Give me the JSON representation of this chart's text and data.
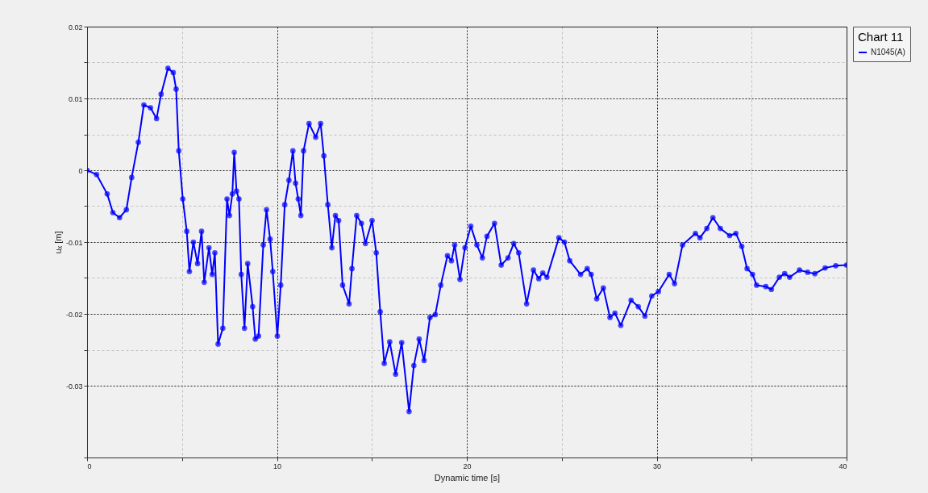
{
  "chart_data": {
    "type": "line",
    "xlabel": "Dynamic time [s]",
    "ylabel": "uₓ [m]",
    "legend_title": "Chart 11",
    "x": [
      0,
      0.5,
      1.06,
      1.36,
      1.71,
      2.07,
      2.35,
      2.7,
      2.99,
      3.34,
      3.66,
      3.9,
      4.26,
      4.54,
      4.69,
      4.83,
      5.04,
      5.25,
      5.39,
      5.6,
      5.82,
      6.03,
      6.17,
      6.42,
      6.59,
      6.73,
      6.9,
      7.15,
      7.37,
      7.5,
      7.65,
      7.75,
      7.87,
      8.0,
      8.12,
      8.29,
      8.46,
      8.72,
      8.86,
      9.03,
      9.28,
      9.45,
      9.64,
      9.78,
      10.02,
      10.2,
      10.41,
      10.63,
      10.84,
      10.98,
      11.12,
      11.26,
      11.4,
      11.69,
      12.04,
      12.3,
      12.47,
      12.68,
      12.89,
      13.08,
      13.25,
      13.46,
      13.8,
      13.95,
      14.2,
      14.45,
      14.66,
      15.01,
      15.23,
      15.44,
      15.65,
      15.94,
      16.25,
      16.57,
      16.96,
      17.21,
      17.49,
      17.75,
      18.06,
      18.34,
      18.63,
      18.98,
      19.19,
      19.36,
      19.64,
      19.9,
      20.21,
      20.53,
      20.82,
      21.06,
      21.46,
      21.81,
      22.17,
      22.47,
      22.73,
      23.15,
      23.51,
      23.79,
      24.0,
      24.22,
      24.85,
      25.14,
      25.42,
      25.99,
      26.34,
      26.55,
      26.84,
      27.19,
      27.54,
      27.8,
      28.11,
      28.65,
      29.03,
      29.38,
      29.74,
      30.09,
      30.66,
      30.94,
      31.36,
      32.04,
      32.28,
      32.64,
      32.96,
      33.35,
      33.84,
      34.17,
      34.48,
      34.76,
      35.05,
      35.26,
      35.75,
      36.04,
      36.46,
      36.74,
      37.0,
      37.52,
      37.95,
      38.33,
      38.87,
      39.43,
      40
    ],
    "series": [
      {
        "name": "N1045(A)",
        "color": "#0000ff",
        "values": [
          0,
          -0.0006,
          -0.0033,
          -0.0059,
          -0.0066,
          -0.0055,
          -0.001,
          0.0039,
          0.0091,
          0.0087,
          0.0072,
          0.0106,
          0.0142,
          0.0136,
          0.0113,
          0.0027,
          -0.004,
          -0.0085,
          -0.0141,
          -0.01,
          -0.013,
          -0.0085,
          -0.0156,
          -0.0108,
          -0.0145,
          -0.0115,
          -0.0242,
          -0.022,
          -0.004,
          -0.0063,
          -0.0033,
          0.0025,
          -0.0029,
          -0.004,
          -0.0145,
          -0.022,
          -0.013,
          -0.019,
          -0.0235,
          -0.0231,
          -0.0104,
          -0.0055,
          -0.0096,
          -0.0141,
          -0.0231,
          -0.016,
          -0.0048,
          -0.0014,
          0.0027,
          -0.0018,
          -0.004,
          -0.0063,
          0.0027,
          0.0065,
          0.0046,
          0.0065,
          0.002,
          -0.0048,
          -0.0108,
          -0.0063,
          -0.007,
          -0.016,
          -0.0186,
          -0.0137,
          -0.0063,
          -0.0074,
          -0.0102,
          -0.007,
          -0.0115,
          -0.0197,
          -0.0269,
          -0.0239,
          -0.0284,
          -0.024,
          -0.0336,
          -0.0272,
          -0.0235,
          -0.0265,
          -0.0205,
          -0.0201,
          -0.016,
          -0.0119,
          -0.0126,
          -0.0104,
          -0.0152,
          -0.0108,
          -0.0078,
          -0.0104,
          -0.0122,
          -0.0092,
          -0.0074,
          -0.0132,
          -0.0122,
          -0.0102,
          -0.0115,
          -0.0186,
          -0.0139,
          -0.0151,
          -0.0143,
          -0.0149,
          -0.0094,
          -0.01,
          -0.0126,
          -0.0145,
          -0.0137,
          -0.0145,
          -0.0179,
          -0.0164,
          -0.0205,
          -0.0199,
          -0.0216,
          -0.0181,
          -0.019,
          -0.0203,
          -0.0175,
          -0.0169,
          -0.0145,
          -0.0158,
          -0.0104,
          -0.0088,
          -0.0094,
          -0.0081,
          -0.0066,
          -0.0081,
          -0.0091,
          -0.0088,
          -0.0106,
          -0.0137,
          -0.0145,
          -0.016,
          -0.0162,
          -0.0166,
          -0.0149,
          -0.0144,
          -0.0149,
          -0.0139,
          -0.0142,
          -0.0144,
          -0.0136,
          -0.0133,
          -0.0132
        ]
      }
    ],
    "xlim": [
      0,
      40
    ],
    "ylim": [
      -0.04,
      0.02
    ],
    "xticks": [
      0,
      {
        "value": 5,
        "label": null
      },
      10,
      {
        "value": 15,
        "label": null
      },
      20,
      {
        "value": 25,
        "label": null
      },
      30,
      {
        "value": 35,
        "label": null
      },
      40
    ],
    "yticks": [
      {
        "value": -0.04,
        "label": null
      },
      -0.03,
      {
        "value": -0.025,
        "label": null
      },
      -0.02,
      {
        "value": -0.015,
        "label": null
      },
      -0.01,
      {
        "value": -0.005,
        "label": null
      },
      0,
      {
        "value": 0.005,
        "label": null
      },
      0.01,
      {
        "value": 0.015,
        "label": null
      },
      0.02
    ],
    "grid": true,
    "legend": "top right",
    "marker": "circle",
    "line_style": "solid"
  }
}
